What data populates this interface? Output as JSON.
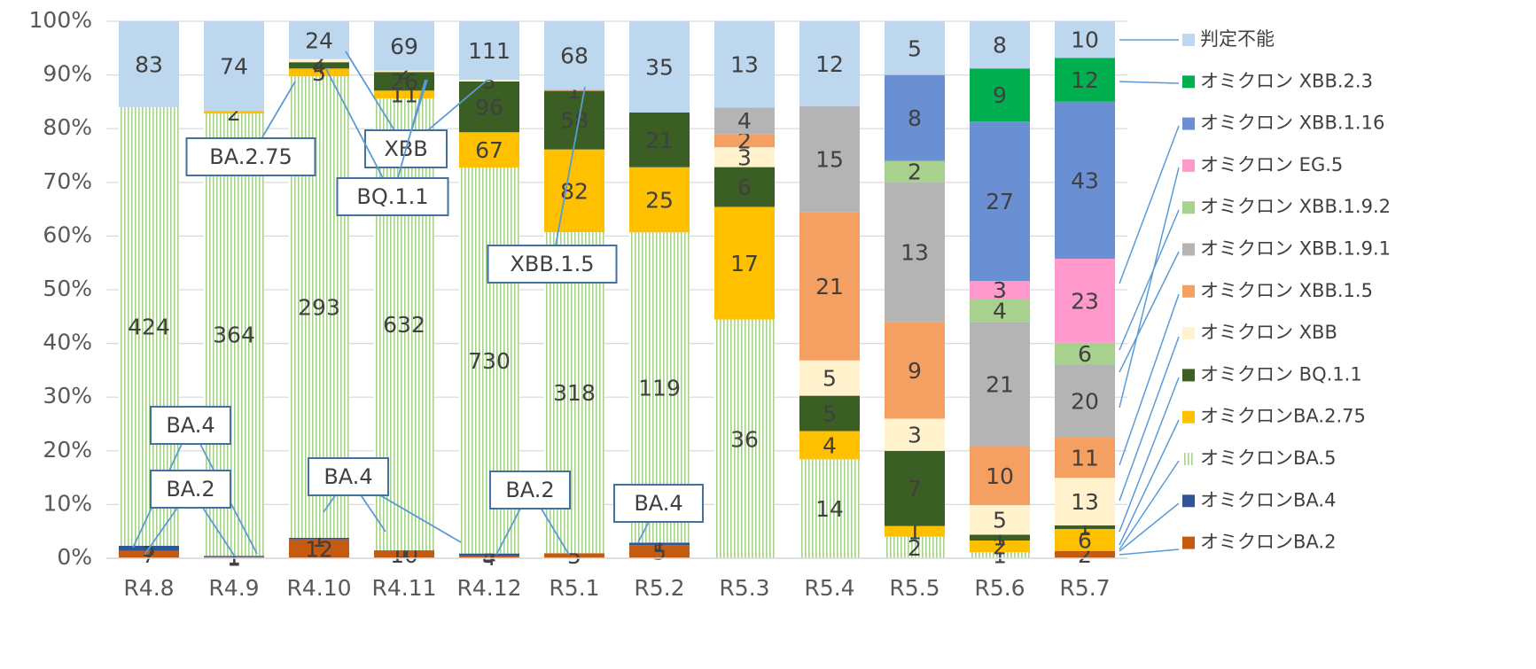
{
  "chart_data": {
    "type": "bar",
    "stacking": "percent",
    "categories": [
      "R4.8",
      "R4.9",
      "R4.10",
      "R4.11",
      "R4.12",
      "R5.1",
      "R5.2",
      "R5.3",
      "R5.4",
      "R5.5",
      "R5.6",
      "R5.7"
    ],
    "series": [
      {
        "name": "オミクロンBA.2",
        "color": "#c55a11",
        "values": [
          7,
          1,
          12,
          10,
          4,
          5,
          5,
          null,
          null,
          null,
          null,
          2
        ]
      },
      {
        "name": "オミクロンBA.4",
        "color": "#2f5597",
        "values": [
          5,
          1,
          1,
          1,
          5,
          null,
          1,
          null,
          null,
          null,
          null,
          null
        ]
      },
      {
        "name": "オミクロンBA.5",
        "color": "#a9d18e",
        "pattern": "vertical-stripes",
        "values": [
          424,
          364,
          293,
          632,
          730,
          318,
          119,
          36,
          14,
          2,
          1,
          null
        ]
      },
      {
        "name": "オミクロンBA.2.75",
        "color": "#ffc000",
        "values": [
          null,
          2,
          5,
          11,
          67,
          82,
          25,
          17,
          4,
          1,
          2,
          6
        ]
      },
      {
        "name": "オミクロン BQ.1.1",
        "color": "#3b5e24",
        "values": [
          null,
          null,
          4,
          26,
          96,
          58,
          21,
          6,
          5,
          7,
          1,
          1
        ]
      },
      {
        "name": "オミクロン XBB",
        "color": "#fff2cc",
        "values": [
          null,
          null,
          2,
          2,
          3,
          null,
          null,
          3,
          5,
          3,
          5,
          13
        ]
      },
      {
        "name": "オミクロン XBB.1.5",
        "color": "#f4a062",
        "values": [
          null,
          null,
          null,
          null,
          null,
          1,
          null,
          2,
          21,
          9,
          10,
          11
        ]
      },
      {
        "name": "オミクロン XBB.1.9.1",
        "color": "#b4b4b4",
        "values": [
          null,
          null,
          null,
          null,
          null,
          null,
          null,
          4,
          15,
          13,
          21,
          20
        ]
      },
      {
        "name": "オミクロン XBB.1.9.2",
        "color": "#a9d18e",
        "values": [
          null,
          null,
          null,
          null,
          null,
          null,
          null,
          null,
          null,
          2,
          4,
          6
        ]
      },
      {
        "name": "オミクロン EG.5",
        "color": "#ff99cc",
        "values": [
          null,
          null,
          null,
          null,
          null,
          null,
          null,
          null,
          null,
          null,
          3,
          23
        ]
      },
      {
        "name": "オミクロン XBB.1.16",
        "color": "#6a8fd2",
        "values": [
          null,
          null,
          null,
          null,
          null,
          null,
          null,
          null,
          null,
          8,
          27,
          43
        ]
      },
      {
        "name": "オミクロン XBB.2.3",
        "color": "#00b050",
        "values": [
          null,
          null,
          null,
          null,
          null,
          null,
          null,
          null,
          null,
          null,
          9,
          12
        ]
      },
      {
        "name": "判定不能",
        "color": "#bdd7ee",
        "values": [
          83,
          74,
          24,
          69,
          111,
          68,
          35,
          13,
          12,
          5,
          8,
          10
        ]
      }
    ],
    "ylim": [
      0,
      100
    ],
    "yticks": [
      {
        "value": 0,
        "label": "0%"
      },
      {
        "value": 10,
        "label": "10%"
      },
      {
        "value": 20,
        "label": "20%"
      },
      {
        "value": 30,
        "label": "30%"
      },
      {
        "value": 40,
        "label": "40%"
      },
      {
        "value": 50,
        "label": "50%"
      },
      {
        "value": 60,
        "label": "60%"
      },
      {
        "value": 70,
        "label": "70%"
      },
      {
        "value": 80,
        "label": "80%"
      },
      {
        "value": 90,
        "label": "90%"
      },
      {
        "value": 100,
        "label": "100%"
      }
    ],
    "grid": true,
    "legend": "right",
    "annotations": [
      "BA.4",
      "BA.2",
      "BA.2.75",
      "XBB",
      "BQ.1.1",
      "XBB.1.5",
      "BA.4",
      "BA.2",
      "BA.4"
    ]
  }
}
